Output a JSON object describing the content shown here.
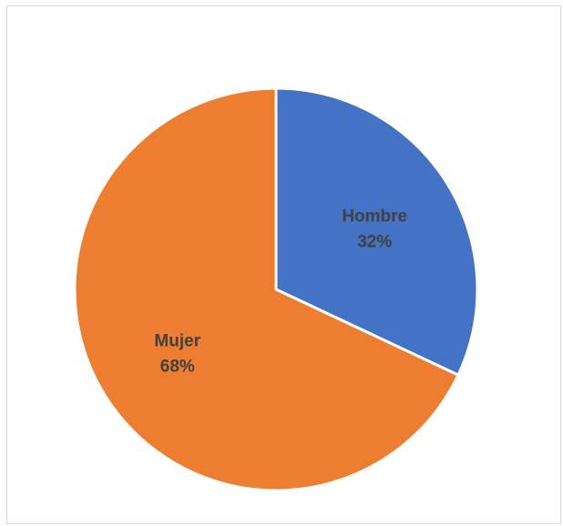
{
  "chart_data": {
    "type": "pie",
    "title": "",
    "start_angle_deg": 0,
    "direction": "clockwise",
    "legend": "none",
    "slices": [
      {
        "label": "Hombre",
        "value": 32,
        "value_label": "32%",
        "color": "#4472C4"
      },
      {
        "label": "Mujer",
        "value": 68,
        "value_label": "68%",
        "color": "#ED7D31"
      }
    ]
  }
}
